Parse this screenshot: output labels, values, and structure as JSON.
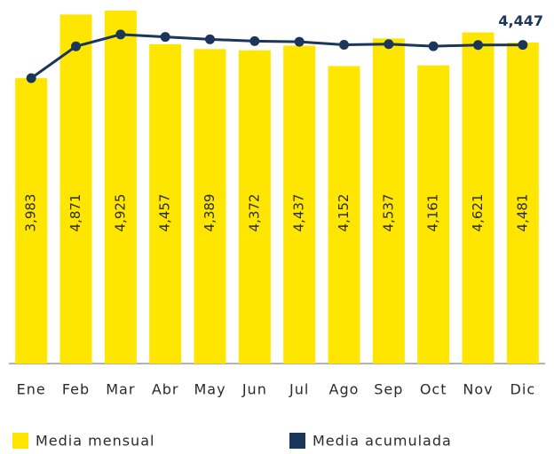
{
  "chart_data": {
    "type": "bar+line",
    "categories": [
      "Ene",
      "Feb",
      "Mar",
      "Abr",
      "May",
      "Jun",
      "Jul",
      "Ago",
      "Sep",
      "Oct",
      "Nov",
      "Dic"
    ],
    "series": [
      {
        "name": "Media mensual",
        "color": "#ffe600",
        "type": "bar",
        "values": [
          3983,
          4871,
          4925,
          4457,
          4389,
          4372,
          4437,
          4152,
          4537,
          4161,
          4621,
          4481
        ],
        "value_labels": [
          "3,983",
          "4,871",
          "4,925",
          "4,457",
          "4,389",
          "4,372",
          "4,437",
          "4,152",
          "4,537",
          "4,161",
          "4,621",
          "4,481"
        ]
      },
      {
        "name": "Media acumulada",
        "color": "#1a365a",
        "type": "line",
        "values": [
          3983,
          4427,
          4593,
          4559,
          4525,
          4500,
          4491,
          4448,
          4458,
          4428,
          4446,
          4447
        ],
        "value_labels": [
          null,
          null,
          null,
          null,
          null,
          null,
          null,
          null,
          null,
          null,
          null,
          "4,447"
        ]
      }
    ]
  }
}
